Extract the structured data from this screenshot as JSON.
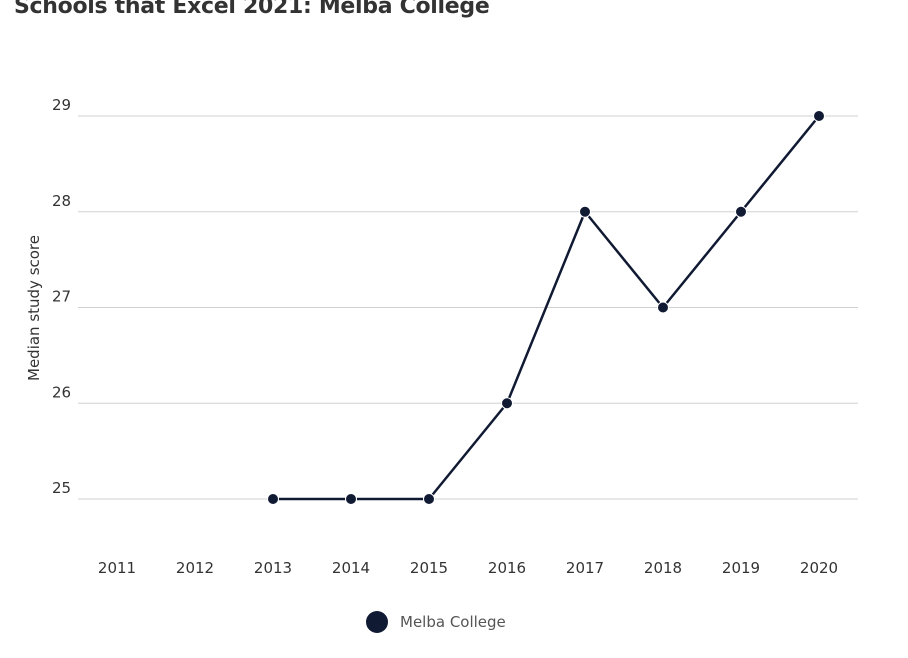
{
  "chart_data": {
    "type": "line",
    "title": "Schools that Excel 2021: Melba College",
    "xlabel": "",
    "ylabel": "Median study score",
    "categories": [
      "2011",
      "2012",
      "2013",
      "2014",
      "2015",
      "2016",
      "2017",
      "2018",
      "2019",
      "2020"
    ],
    "series": [
      {
        "name": "Melba College",
        "values": [
          null,
          null,
          25,
          25,
          25,
          26,
          28,
          27,
          28,
          29
        ]
      }
    ],
    "yticks": [
      25,
      26,
      27,
      28,
      29
    ],
    "ylim": [
      25,
      29
    ],
    "grid": true,
    "legend": "bottom-center",
    "colors": {
      "series": "#111a33",
      "grid": "#d0d0d0",
      "text": "#333333"
    }
  }
}
